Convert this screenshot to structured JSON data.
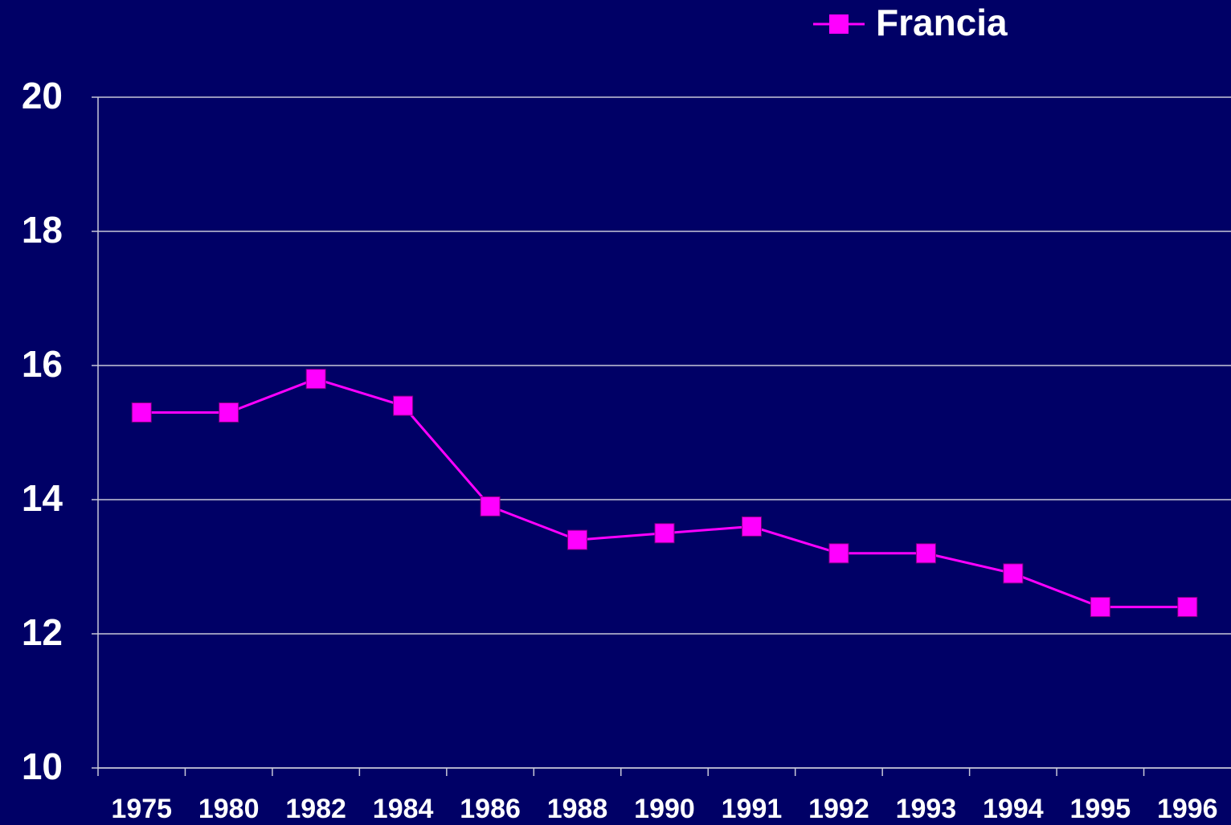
{
  "chart_data": {
    "type": "line",
    "categories": [
      "1975",
      "1980",
      "1982",
      "1984",
      "1986",
      "1988",
      "1990",
      "1991",
      "1992",
      "1993",
      "1994",
      "1995",
      "1996"
    ],
    "series": [
      {
        "name": "Francia",
        "color": "#ff00ff",
        "values": [
          15.3,
          15.3,
          15.8,
          15.4,
          13.9,
          13.4,
          13.5,
          13.6,
          13.2,
          13.2,
          12.9,
          12.4,
          12.4
        ]
      }
    ],
    "ylim": [
      10,
      20
    ],
    "yticks": [
      10,
      12,
      14,
      16,
      18,
      20
    ],
    "grid": true,
    "legend": "top"
  }
}
